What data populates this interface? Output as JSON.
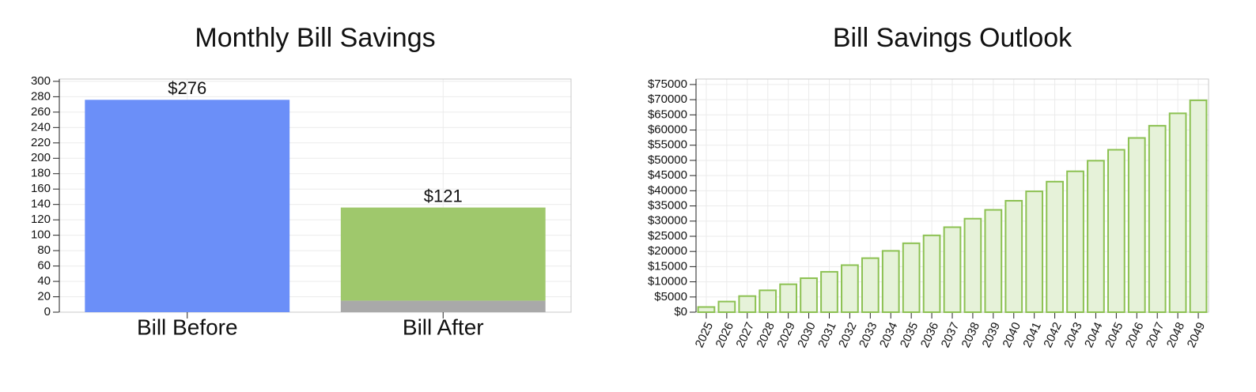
{
  "chart_data": [
    {
      "type": "bar",
      "title": "Monthly Bill Savings",
      "grid": true,
      "categories": [
        "Bill Before",
        "Bill After"
      ],
      "series": [
        {
          "color": "#6b8ff8",
          "values": [
            276,
            null
          ],
          "value_labels": [
            "$276",
            null
          ]
        },
        {
          "color": "#a9a9a9",
          "values": [
            null,
            15
          ]
        },
        {
          "color": "#9fc86c",
          "values": [
            null,
            121
          ],
          "value_labels": [
            null,
            "$121"
          ]
        }
      ],
      "ylim": [
        0,
        303
      ],
      "yticks": [
        0,
        20,
        40,
        60,
        80,
        100,
        120,
        140,
        160,
        180,
        200,
        220,
        240,
        260,
        280,
        300
      ]
    },
    {
      "type": "bar",
      "title": "Bill Savings Outlook",
      "grid": true,
      "color": "#e6f2d9",
      "edgecolor": "#8cc152",
      "categories": [
        "2025",
        "2026",
        "2027",
        "2028",
        "2029",
        "2030",
        "2031",
        "2032",
        "2033",
        "2034",
        "2035",
        "2036",
        "2037",
        "2038",
        "2039",
        "2040",
        "2041",
        "2042",
        "2043",
        "2044",
        "2045",
        "2046",
        "2047",
        "2048",
        "2049"
      ],
      "values": [
        1700,
        3500,
        5300,
        7200,
        9200,
        11200,
        13300,
        15500,
        17800,
        20200,
        22700,
        25300,
        28000,
        30800,
        33700,
        36700,
        39800,
        43000,
        46400,
        49900,
        53500,
        57400,
        61400,
        65500,
        69800
      ],
      "ylim": [
        0,
        76800
      ],
      "yticks": [
        {
          "value": 0,
          "label": "$0"
        },
        {
          "value": 5000,
          "label": "$5000"
        },
        {
          "value": 10000,
          "label": "$10000"
        },
        {
          "value": 15000,
          "label": "$15000"
        },
        {
          "value": 20000,
          "label": "$20000"
        },
        {
          "value": 25000,
          "label": "$25000"
        },
        {
          "value": 30000,
          "label": "$30000"
        },
        {
          "value": 35000,
          "label": "$35000"
        },
        {
          "value": 40000,
          "label": "$40000"
        },
        {
          "value": 45000,
          "label": "$45000"
        },
        {
          "value": 50000,
          "label": "$50000"
        },
        {
          "value": 55000,
          "label": "$55000"
        },
        {
          "value": 60000,
          "label": "$60000"
        },
        {
          "value": 65000,
          "label": "$65000"
        },
        {
          "value": 70000,
          "label": "$70000"
        },
        {
          "value": 75000,
          "label": "$75000"
        }
      ]
    }
  ]
}
